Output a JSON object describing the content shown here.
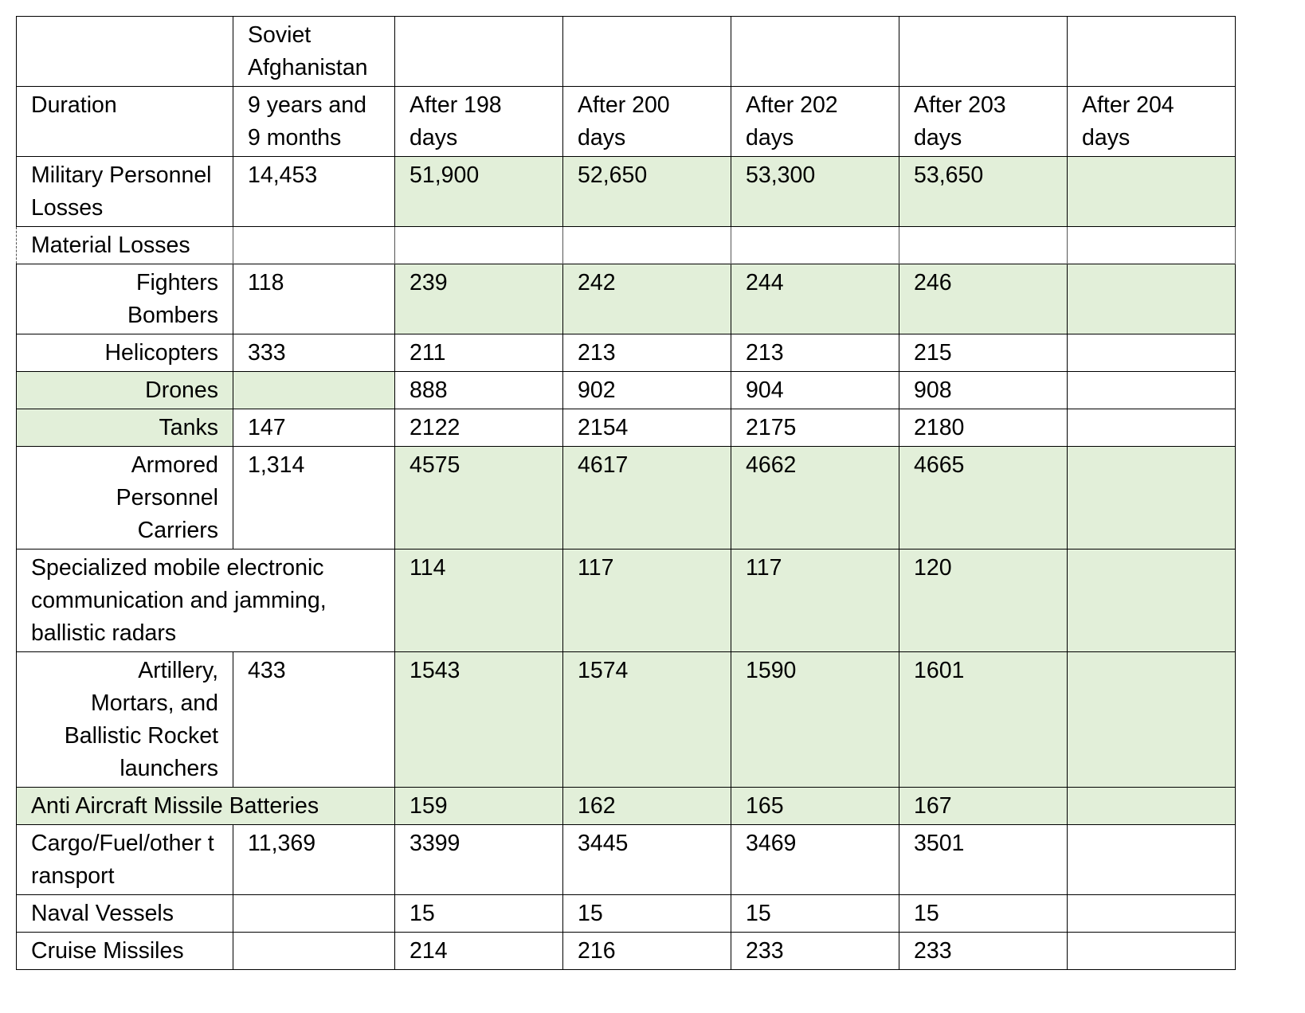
{
  "colors": {
    "highlight": "#e2efd9",
    "border": "#000000"
  },
  "header": {
    "soviet": "Soviet Afghanistan",
    "duration_label": "Duration",
    "soviet_duration": "9 years and 9 months",
    "periods": [
      "After 198 days",
      "After 200 days",
      "After 202 days",
      "After 203 days",
      "After 204 days"
    ]
  },
  "military": {
    "label": "Military Personnel Losses",
    "soviet": "14,453",
    "values": [
      "51,900",
      "52,650",
      "53,300",
      "53,650",
      ""
    ]
  },
  "material_label": "Material Losses",
  "rows": [
    {
      "label": "Fighters Bombers",
      "soviet": "118",
      "values": [
        "239",
        "242",
        "244",
        "246",
        ""
      ]
    },
    {
      "label": "Helicopters",
      "soviet": "333",
      "values": [
        "211",
        "213",
        "213",
        "215",
        ""
      ]
    },
    {
      "label": "Drones",
      "soviet": "",
      "values": [
        "888",
        "902",
        "904",
        "908",
        ""
      ]
    },
    {
      "label": "Tanks",
      "soviet": "147",
      "values": [
        "2122",
        "2154",
        "2175",
        "2180",
        ""
      ]
    },
    {
      "label": "Armored Personnel Carriers",
      "soviet": "1,314",
      "values": [
        "4575",
        "4617",
        "4662",
        "4665",
        ""
      ]
    },
    {
      "label": "Specialized mobile electronic communication and jamming, ballistic radars",
      "values": [
        "114",
        "117",
        "117",
        "120",
        ""
      ]
    },
    {
      "label": "Artillery, Mortars, and Ballistic Rocket launchers",
      "soviet": "433",
      "values": [
        "1543",
        "1574",
        "1590",
        "1601",
        ""
      ]
    },
    {
      "label": "Anti Aircraft Missile Batteries",
      "values": [
        "159",
        "162",
        "165",
        "167",
        ""
      ]
    },
    {
      "label": "Cargo/Fuel/other transport",
      "soviet": "11,369",
      "values": [
        "3399",
        "3445",
        "3469",
        "3501",
        ""
      ]
    },
    {
      "label": "Naval Vessels",
      "soviet": "",
      "values": [
        "15",
        "15",
        "15",
        "15",
        ""
      ]
    },
    {
      "label": "Cruise Missiles",
      "soviet": "",
      "values": [
        "214",
        "216",
        "233",
        "233",
        ""
      ]
    }
  ]
}
